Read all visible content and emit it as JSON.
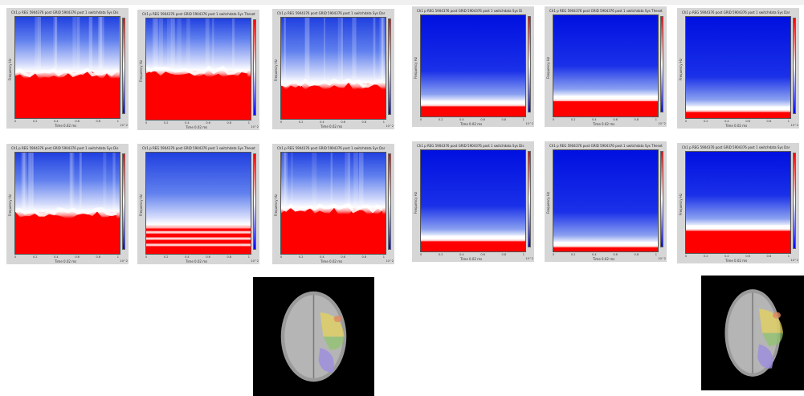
{
  "colormap": {
    "high": "#ff0000",
    "mid": "#ffffff",
    "low": "#0000ff"
  },
  "groups": [
    {
      "panels": [
        {
          "title": "Ch1 p REG 5904376 post GRID 5904376 post 1 switchdata Sys Dis",
          "ylabel": "Frequency Hz",
          "xlabel": "Time 0.02 ms",
          "xticks": [
            "0",
            "0.2",
            "0.4",
            "0.6",
            "0.8",
            "1"
          ],
          "red_start": 0.58,
          "style": "rough",
          "cbar_exp": "10^2"
        },
        {
          "title": "Ch1 p REG 5904376 post GRID 5904376 post 1 switchdata Sys Theset",
          "ylabel": "Frequency Hz",
          "xlabel": "Time 0.02 ms",
          "xticks": [
            "0",
            "0.2",
            "0.4",
            "0.6",
            "0.8",
            "1"
          ],
          "red_start": 0.55,
          "style": "rough",
          "cbar_exp": "10^2"
        },
        {
          "title": "Ch1 p REG 5904376 post GRID 5904376 post 1 switchdata Sys Dar",
          "ylabel": "Frequency Hz",
          "xlabel": "Time 0.02 ms",
          "xticks": [
            "0",
            "0.2",
            "0.4",
            "0.6",
            "0.8",
            "1"
          ],
          "red_start": 0.68,
          "style": "rough",
          "cbar_exp": "10^2"
        },
        {
          "title": "Ch1 p REG 5904376 post GRID 5904376 post 1 switchdata Sys Dis",
          "ylabel": "Frequency Hz",
          "xlabel": "Time 0.02 ms",
          "xticks": [
            "0",
            "0.2",
            "0.4",
            "0.6",
            "0.8",
            "1"
          ],
          "red_start": 0.62,
          "style": "rough",
          "cbar_exp": "10^2"
        },
        {
          "title": "Ch1 p REG 5904376 post GRID 5904376 post 1 switchdata Sys Theset",
          "ylabel": "Frequency Hz",
          "xlabel": "Time 0.02 ms",
          "xticks": [
            "0",
            "0.2",
            "0.4",
            "0.6",
            "0.8",
            "1"
          ],
          "red_start": 0.75,
          "style": "bands",
          "cbar_exp": "10^2"
        },
        {
          "title": "Ch1 p REG 5904376 post GRID 5904376 post 1 switchdata Sys Dar",
          "ylabel": "Frequency Hz",
          "xlabel": "Time 0.02 ms",
          "xticks": [
            "0",
            "0.2",
            "0.4",
            "0.6",
            "0.8",
            "1"
          ],
          "red_start": 0.58,
          "style": "rough",
          "cbar_exp": "10^2"
        }
      ],
      "brain": {
        "scan": "axial-mri-slice",
        "overlay_colors": [
          "#e6d35c",
          "#8fc46a",
          "#9c8de0",
          "#e08a5c"
        ]
      }
    },
    {
      "panels": [
        {
          "title": "Ch1 p REG 5904376 post GRID 5904376 post 1 switchdata Sys Di",
          "ylabel": "Frequency Hz",
          "xlabel": "Time 0.02 ms",
          "xticks": [
            "0",
            "0.2",
            "0.4",
            "0.6",
            "0.8",
            "1"
          ],
          "red_start": 0.9,
          "style": "low",
          "cbar_exp": "10^2"
        },
        {
          "title": "Ch1 p REG 5904376 post GRID 5904376 post 1 switchdata Sys Theset",
          "ylabel": "Frequency Hz",
          "xlabel": "Time 0.02 ms",
          "xticks": [
            "0",
            "0.2",
            "0.4",
            "0.6",
            "0.8",
            "1"
          ],
          "red_start": 0.85,
          "style": "low",
          "cbar_exp": "10^2"
        },
        {
          "title": "Ch1 p REG 5904376 post GRID 5904376 post 1 switchdata Sys Dar",
          "ylabel": "Frequency Hz",
          "xlabel": "Time 0.02 ms",
          "xticks": [
            "0",
            "0.2",
            "0.4",
            "0.6",
            "0.8",
            "1"
          ],
          "red_start": 0.94,
          "style": "low",
          "cbar_exp": "10^2"
        },
        {
          "title": "Ch1 p REG 5904376 post GRID 5904376 post 1 switchdata Sys Dis",
          "ylabel": "Frequency Hz",
          "xlabel": "Time 0.02 ms",
          "xticks": [
            "0",
            "0.2",
            "0.4",
            "0.6",
            "0.8",
            "1"
          ],
          "red_start": 0.9,
          "style": "low",
          "cbar_exp": "10^2"
        },
        {
          "title": "Ch1 p REG 5904376 post GRID 5904376 post 1 switchdata Sys Theset",
          "ylabel": "Frequency Hz",
          "xlabel": "Time 0.02 ms",
          "xticks": [
            "0",
            "0.2",
            "0.4",
            "0.6",
            "0.8",
            "1"
          ],
          "red_start": 0.96,
          "style": "low",
          "cbar_exp": "10^2"
        },
        {
          "title": "Ch1 p REG 5904376 post GRID 5904376 post 1 switchdata Sys Dar",
          "ylabel": "Frequency Hz",
          "xlabel": "Time 0.02 ms",
          "xticks": [
            "0",
            "0.2",
            "0.4",
            "0.6",
            "0.8",
            "1"
          ],
          "red_start": 0.78,
          "style": "low",
          "cbar_exp": "10^2"
        }
      ],
      "brain": {
        "scan": "axial-mri-slice",
        "overlay_colors": [
          "#e6d35c",
          "#8fc46a",
          "#9c8de0",
          "#e08a5c"
        ]
      }
    }
  ]
}
